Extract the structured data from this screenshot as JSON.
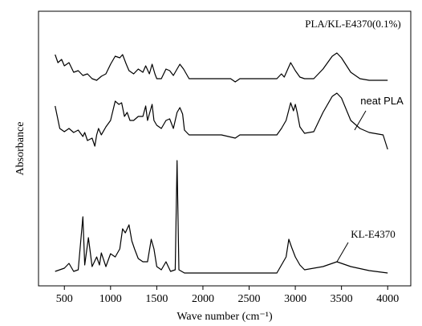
{
  "chart_data": {
    "type": "line",
    "xlabel": "Wave number (cm⁻¹)",
    "ylabel": "Absorbance",
    "xlim": [
      220,
      4250
    ],
    "ylim": [
      0,
      342
    ],
    "xticks": [
      500,
      1000,
      1500,
      2000,
      2500,
      3000,
      3500,
      4000
    ],
    "series": [
      {
        "name": "PLA/KL-E4370(0.1%)",
        "color": "#000000",
        "x": [
          400,
          430,
          470,
          500,
          550,
          600,
          650,
          700,
          750,
          800,
          850,
          900,
          950,
          1000,
          1050,
          1100,
          1130,
          1170,
          1200,
          1250,
          1300,
          1350,
          1380,
          1420,
          1450,
          1480,
          1500,
          1550,
          1600,
          1640,
          1680,
          1720,
          1750,
          1790,
          1850,
          1900,
          2000,
          2100,
          2200,
          2300,
          2350,
          2400,
          2500,
          2600,
          2700,
          2800,
          2850,
          2880,
          2950,
          3000,
          3050,
          3100,
          3200,
          3300,
          3400,
          3450,
          3500,
          3600,
          3700,
          3800,
          4000
        ],
        "values": [
          288,
          278,
          282,
          274,
          278,
          266,
          268,
          262,
          264,
          258,
          256,
          261,
          264,
          276,
          286,
          284,
          288,
          276,
          268,
          264,
          270,
          266,
          274,
          264,
          276,
          264,
          258,
          258,
          270,
          268,
          262,
          270,
          276,
          270,
          258,
          258,
          258,
          258,
          258,
          258,
          254,
          258,
          258,
          258,
          258,
          258,
          264,
          260,
          278,
          268,
          260,
          258,
          258,
          270,
          286,
          290,
          284,
          266,
          258,
          256,
          256
        ]
      },
      {
        "name": "neat PLA",
        "color": "#000000",
        "x": [
          400,
          450,
          500,
          550,
          600,
          650,
          700,
          720,
          750,
          800,
          830,
          850,
          870,
          900,
          950,
          1000,
          1050,
          1090,
          1120,
          1150,
          1180,
          1210,
          1250,
          1300,
          1350,
          1380,
          1400,
          1430,
          1450,
          1470,
          1500,
          1550,
          1600,
          1640,
          1680,
          1720,
          1750,
          1780,
          1800,
          1850,
          1900,
          2000,
          2200,
          2350,
          2400,
          2600,
          2800,
          2850,
          2900,
          2950,
          2980,
          3000,
          3020,
          3050,
          3100,
          3200,
          3300,
          3400,
          3450,
          3500,
          3600,
          3700,
          3800,
          3950,
          4000
        ],
        "values": [
          224,
          196,
          192,
          196,
          191,
          194,
          186,
          191,
          181,
          184,
          174,
          188,
          196,
          188,
          198,
          206,
          230,
          226,
          228,
          211,
          216,
          206,
          206,
          211,
          211,
          224,
          206,
          218,
          226,
          206,
          200,
          196,
          206,
          208,
          196,
          216,
          222,
          214,
          194,
          188,
          188,
          188,
          188,
          184,
          188,
          188,
          188,
          196,
          206,
          228,
          218,
          226,
          216,
          198,
          190,
          192,
          216,
          236,
          240,
          234,
          206,
          196,
          191,
          188,
          170
        ]
      },
      {
        "name": "KL-E4370",
        "color": "#000000",
        "x": [
          400,
          500,
          550,
          600,
          650,
          700,
          720,
          760,
          800,
          850,
          880,
          900,
          950,
          1000,
          1050,
          1100,
          1130,
          1160,
          1200,
          1230,
          1260,
          1300,
          1350,
          1400,
          1440,
          1470,
          1500,
          1550,
          1600,
          1650,
          1700,
          1720,
          1740,
          1800,
          2000,
          2500,
          2800,
          2900,
          2930,
          2960,
          3000,
          3050,
          3100,
          3300,
          3450,
          3600,
          3800,
          4000
        ],
        "values": [
          18,
          22,
          28,
          18,
          20,
          86,
          26,
          60,
          24,
          36,
          26,
          41,
          24,
          40,
          36,
          46,
          71,
          66,
          76,
          56,
          46,
          34,
          30,
          30,
          58,
          46,
          24,
          20,
          30,
          18,
          20,
          156,
          20,
          16,
          16,
          16,
          16,
          36,
          58,
          48,
          36,
          26,
          20,
          24,
          30,
          24,
          19,
          16
        ]
      }
    ]
  }
}
